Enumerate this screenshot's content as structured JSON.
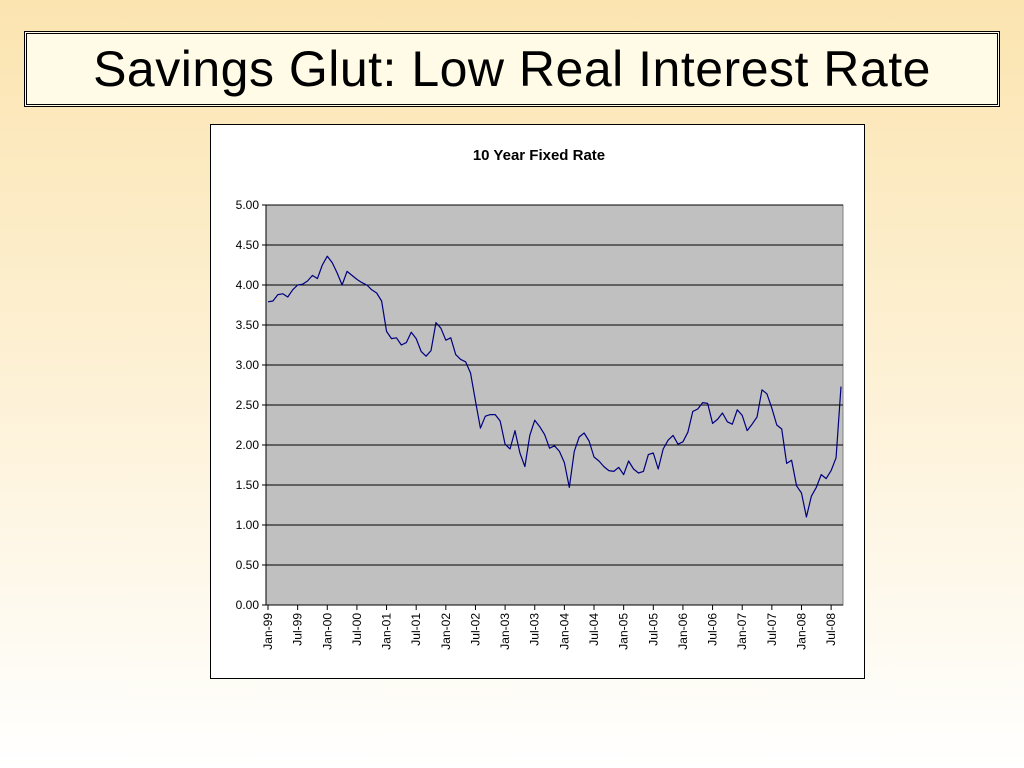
{
  "slide": {
    "title": "Savings Glut: Low Real Interest Rate"
  },
  "colors": {
    "line": "#000080",
    "plot_bg": "#c0c0c0",
    "gridline": "#000000"
  },
  "chart_data": {
    "type": "line",
    "title": "10 Year Fixed Rate",
    "xlabel": "",
    "ylabel": "",
    "ylim": [
      0,
      5
    ],
    "yticks": [
      "0.00",
      "0.50",
      "1.00",
      "1.50",
      "2.00",
      "2.50",
      "3.00",
      "3.50",
      "4.00",
      "4.50",
      "5.00"
    ],
    "xticks": [
      "Jan-99",
      "Jul-99",
      "Jan-00",
      "Jul-00",
      "Jan-01",
      "Jul-01",
      "Jan-02",
      "Jul-02",
      "Jan-03",
      "Jul-03",
      "Jan-04",
      "Jul-04",
      "Jan-05",
      "Jul-05",
      "Jan-06",
      "Jul-06",
      "Jan-07",
      "Jul-07",
      "Jan-08",
      "Jul-08"
    ],
    "grid": true,
    "legend": "none",
    "series": [
      {
        "start": "Jan-99",
        "frequency": "monthly",
        "values": [
          3.79,
          3.8,
          3.88,
          3.89,
          3.85,
          3.94,
          4.0,
          4.01,
          4.05,
          4.12,
          4.08,
          4.25,
          4.36,
          4.28,
          4.15,
          4.0,
          4.17,
          4.12,
          4.07,
          4.03,
          4.0,
          3.94,
          3.9,
          3.8,
          3.42,
          3.33,
          3.34,
          3.25,
          3.28,
          3.41,
          3.33,
          3.17,
          3.11,
          3.18,
          3.53,
          3.46,
          3.31,
          3.34,
          3.13,
          3.07,
          3.04,
          2.9,
          2.55,
          2.21,
          2.36,
          2.38,
          2.38,
          2.3,
          2.01,
          1.95,
          2.18,
          1.9,
          1.73,
          2.12,
          2.31,
          2.23,
          2.13,
          1.96,
          1.99,
          1.92,
          1.78,
          1.47,
          1.92,
          2.1,
          2.15,
          2.05,
          1.85,
          1.8,
          1.73,
          1.68,
          1.67,
          1.72,
          1.63,
          1.8,
          1.7,
          1.65,
          1.67,
          1.88,
          1.9,
          1.7,
          1.95,
          2.06,
          2.12,
          2.01,
          2.04,
          2.16,
          2.42,
          2.45,
          2.53,
          2.52,
          2.27,
          2.32,
          2.4,
          2.29,
          2.26,
          2.44,
          2.37,
          2.18,
          2.26,
          2.35,
          2.69,
          2.64,
          2.46,
          2.25,
          2.2,
          1.77,
          1.81,
          1.49,
          1.4,
          1.1,
          1.36,
          1.47,
          1.63,
          1.58,
          1.68,
          1.84,
          2.73
        ]
      }
    ]
  }
}
